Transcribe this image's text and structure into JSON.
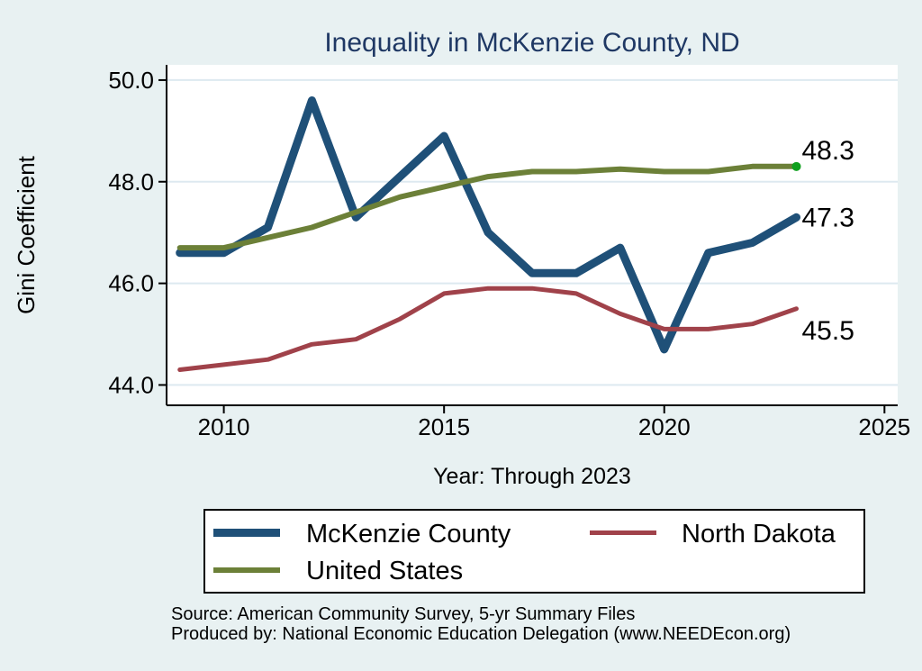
{
  "page": {
    "title": "Inequality in McKenzie County, ND",
    "y_axis_label": "Gini Coefficient",
    "x_axis_label": "Year: Through 2023",
    "source_line_1": "Source: American Community Survey, 5-yr Summary Files",
    "source_line_2": "Produced by: National Economic Education Delegation (www.NEEDEcon.org)"
  },
  "legend": {
    "items": [
      {
        "label": "McKenzie County"
      },
      {
        "label": "North Dakota"
      },
      {
        "label": "United States"
      }
    ]
  },
  "colors": {
    "background": "#e8f1f2",
    "plot_background": "#ffffff",
    "gridline": "#dde9f0",
    "axis": "#000000",
    "title": "#1f3864",
    "mckenzie_blue": "#1f5078",
    "north_dakota_red": "#a0424a",
    "united_states_green": "#6c8038",
    "end_marker_green": "#0fa01e"
  },
  "chart_data": {
    "type": "line",
    "title": "Inequality in McKenzie County, ND",
    "xlabel": "Year: Through 2023",
    "ylabel": "Gini Coefficient",
    "x": [
      2009,
      2010,
      2011,
      2012,
      2013,
      2014,
      2015,
      2016,
      2017,
      2018,
      2019,
      2020,
      2021,
      2022,
      2023
    ],
    "series": [
      {
        "name": "McKenzie County",
        "color": "#1f5078",
        "line_width": 9,
        "values": [
          46.6,
          46.6,
          47.1,
          49.6,
          47.3,
          48.1,
          48.9,
          47.0,
          46.2,
          46.2,
          46.7,
          44.7,
          46.6,
          46.8,
          47.3
        ],
        "end_label": "47.3",
        "end_marker": false
      },
      {
        "name": "North Dakota",
        "color": "#a0424a",
        "line_width": 5,
        "values": [
          44.3,
          44.4,
          44.5,
          44.8,
          44.9,
          45.3,
          45.8,
          45.9,
          45.9,
          45.8,
          45.4,
          45.1,
          45.1,
          45.2,
          45.5
        ],
        "end_label": "45.5",
        "end_marker": false
      },
      {
        "name": "United States",
        "color": "#6c8038",
        "line_width": 6,
        "values": [
          46.7,
          46.7,
          46.9,
          47.1,
          47.4,
          47.7,
          47.9,
          48.1,
          48.2,
          48.2,
          48.25,
          48.2,
          48.2,
          48.3,
          48.3
        ],
        "end_label": "48.3",
        "end_marker": true,
        "end_marker_color": "#0fa01e"
      }
    ],
    "xticks": [
      2010,
      2015,
      2020,
      2025
    ],
    "yticks": [
      50.0,
      48.0,
      46.0,
      44.0
    ],
    "ytick_labels": [
      "50.0",
      "48.0",
      "46.0",
      "44.0"
    ],
    "xlim": [
      2008.7,
      2025.3
    ],
    "ylim": [
      43.6,
      50.3
    ],
    "grid": true,
    "legend_position": "bottom"
  }
}
